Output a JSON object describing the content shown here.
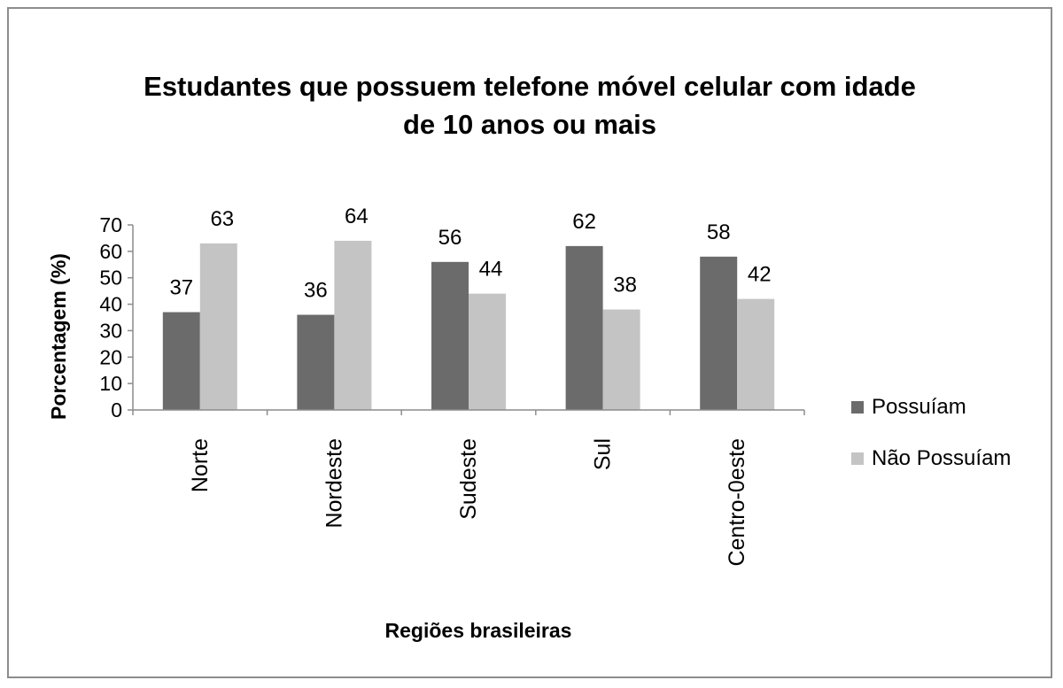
{
  "chart_data": {
    "type": "bar",
    "title": [
      "Estudantes que possuem telefone móvel celular com idade",
      "de 10 anos ou mais"
    ],
    "xlabel": "Regiões brasileiras",
    "ylabel": "Porcentagem (%)",
    "categories": [
      "Norte",
      "Nordeste",
      "Sudeste",
      "Sul",
      "Centro-0este"
    ],
    "series": [
      {
        "name": "Possuíam",
        "color": "#6b6b6b",
        "values": [
          37,
          36,
          56,
          62,
          58
        ]
      },
      {
        "name": "Não Possuíam",
        "color": "#c4c4c4",
        "values": [
          63,
          64,
          44,
          38,
          42
        ]
      }
    ],
    "ylim": [
      0,
      70
    ],
    "yticks": [
      0,
      10,
      20,
      30,
      40,
      50,
      60,
      70
    ],
    "grid": false,
    "legend": "right"
  }
}
